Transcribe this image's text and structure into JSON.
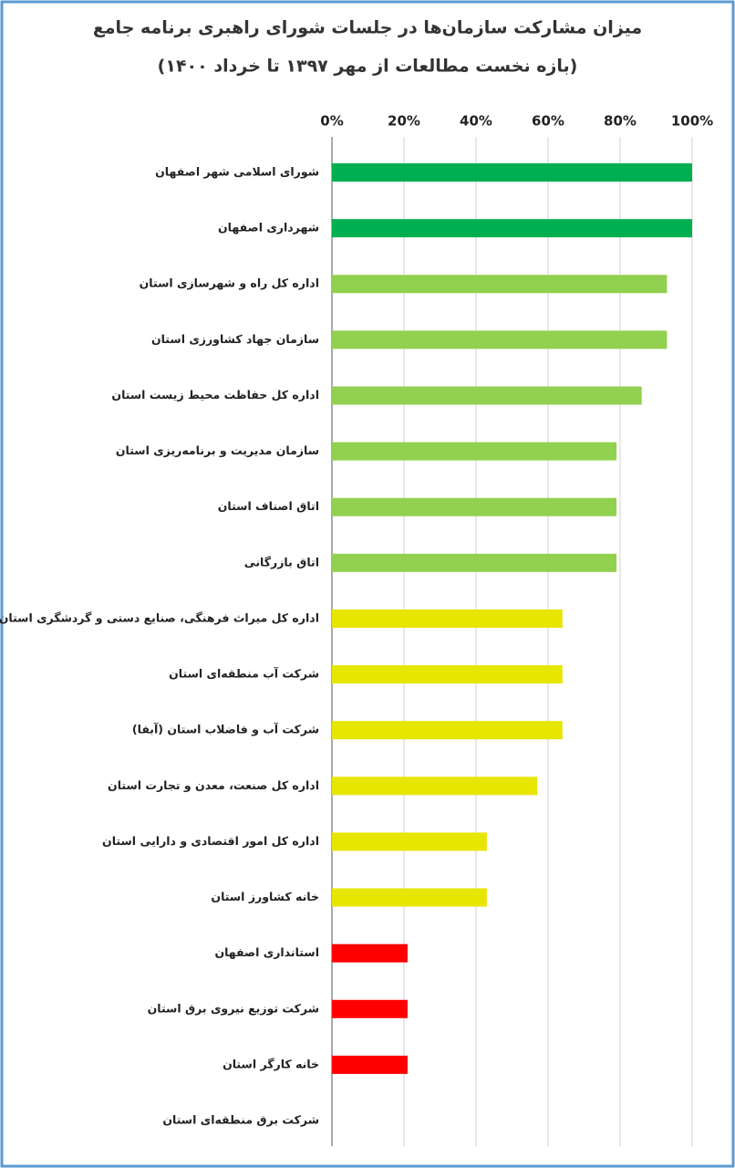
{
  "chart_data": {
    "type": "hbar",
    "title": "میزان مشارکت سازمان‌ها در جلسات شورای راهبری برنامه جامع",
    "subtitle": "(بازه نخست مطالعات از مهر ۱۳۹۷ تا خرداد ۱۴۰۰)",
    "categories": [
      "شورای اسلامی شهر اصفهان",
      "شهرداری اصفهان",
      "اداره کل راه و شهرسازی استان",
      "سازمان جهاد کشاورزی استان",
      "اداره کل حفاظت محیط زیست استان",
      "سازمان مدیریت و برنامه‌ریزی استان",
      "اتاق اصناف استان",
      "اتاق بازرگانی",
      "اداره کل میراث فرهنگی، صنایع دستی و گردشگری استان",
      "شرکت آب منطقه‌ای استان",
      "شرکت آب و فاضلاب استان (آبفا)",
      "اداره کل صنعت، معدن و تجارت استان",
      "اداره کل امور اقتصادی و دارایی استان",
      "خانه کشاورز استان",
      "استانداری اصفهان",
      "شرکت توزیع نیروی برق استان",
      "خانه کارگر استان",
      "شرکت برق منطقه‌ای استان"
    ],
    "values": [
      100,
      100,
      93,
      93,
      86,
      79,
      79,
      79,
      64,
      64,
      64,
      57,
      43,
      43,
      21,
      21,
      21,
      0
    ],
    "colors": [
      "#00b050",
      "#00b050",
      "#92d050",
      "#92d050",
      "#92d050",
      "#92d050",
      "#92d050",
      "#92d050",
      "#e6e600",
      "#e6e600",
      "#e6e600",
      "#e6e600",
      "#e6e600",
      "#e6e600",
      "#ff0000",
      "#ff0000",
      "#ff0000",
      "#ff0000"
    ],
    "xlim": [
      0,
      100
    ],
    "xticks": [
      {
        "value": 0,
        "label": "0%"
      },
      {
        "value": 20,
        "label": "20%"
      },
      {
        "value": 40,
        "label": "40%"
      },
      {
        "value": 60,
        "label": "60%"
      },
      {
        "value": 80,
        "label": "80%"
      },
      {
        "value": 100,
        "label": "100%"
      }
    ],
    "grid": true
  }
}
